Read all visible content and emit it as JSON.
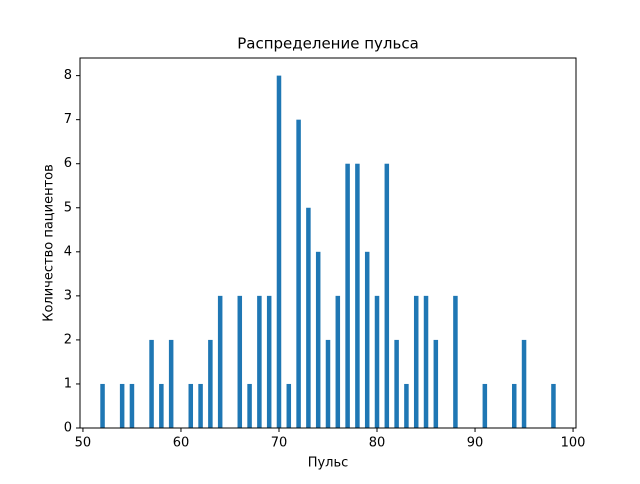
{
  "chart_data": {
    "type": "bar",
    "title": "Распределение пульса",
    "x_label": "Пульс",
    "y_label": "Количество пациентов",
    "x": [
      52,
      54,
      55,
      57,
      58,
      59,
      61,
      62,
      63,
      64,
      66,
      67,
      68,
      69,
      70,
      71,
      72,
      73,
      74,
      75,
      76,
      77,
      78,
      79,
      80,
      81,
      82,
      83,
      84,
      85,
      86,
      88,
      91,
      94,
      95,
      98
    ],
    "values": [
      1,
      1,
      1,
      2,
      1,
      2,
      1,
      1,
      2,
      3,
      3,
      1,
      3,
      3,
      8,
      1,
      7,
      5,
      4,
      2,
      3,
      6,
      6,
      4,
      3,
      6,
      2,
      1,
      3,
      3,
      2,
      3,
      1,
      1,
      2,
      1
    ],
    "color": "#1f77b4",
    "xlim": [
      49.7,
      100.3
    ],
    "xticks": [
      50,
      60,
      70,
      80,
      90,
      100
    ],
    "ylim": [
      0,
      8.4
    ],
    "yticks": [
      0,
      1,
      2,
      3,
      4,
      5,
      6,
      7,
      8
    ]
  }
}
